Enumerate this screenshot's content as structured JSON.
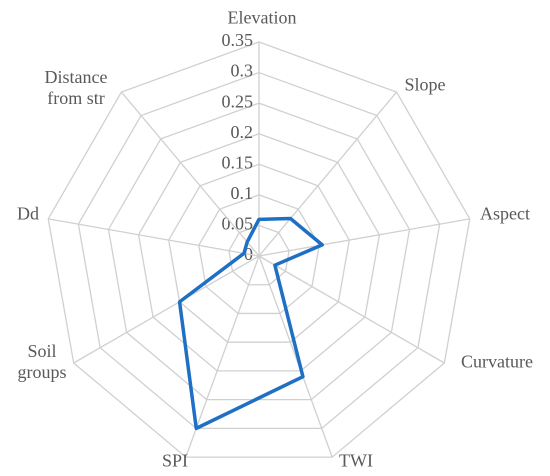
{
  "chart_data": {
    "type": "radar",
    "categories": [
      "Elevation",
      "Slope",
      "Aspect",
      "Curvature",
      "TWI",
      "SPI",
      "Soil groups",
      "Dd",
      "Distance from str"
    ],
    "series": [
      {
        "color": "#1f6fc5",
        "values": [
          0.06,
          0.08,
          0.105,
          0.03,
          0.21,
          0.3,
          0.15,
          0.025,
          0.03
        ]
      }
    ],
    "ylim": [
      0,
      0.35
    ],
    "yticks": [
      0,
      0.05,
      0.1,
      0.15,
      0.2,
      0.25,
      0.3,
      0.35
    ],
    "grid": true
  }
}
